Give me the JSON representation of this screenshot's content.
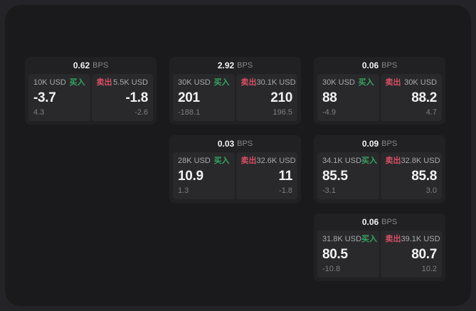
{
  "labels": {
    "bps_unit": "BPS",
    "buy": "买入",
    "sell": "卖出"
  },
  "colors": {
    "buy_green": "#36a45f",
    "sell_red": "#d65063",
    "window_bg": "#1a1a1c",
    "card_bg": "#212124",
    "panel_bg": "#29292c"
  },
  "cards": [
    {
      "grid": {
        "row": 0,
        "col": 0
      },
      "bps": "0.62",
      "buy": {
        "size": "10K USD",
        "price": "-3.7",
        "change": "4.3"
      },
      "sell": {
        "size": "5.5K USD",
        "price": "-1.8",
        "change": "-2.6"
      }
    },
    {
      "grid": {
        "row": 0,
        "col": 1
      },
      "bps": "2.92",
      "buy": {
        "size": "30K USD",
        "price": "201",
        "change": "-188.1"
      },
      "sell": {
        "size": "30.1K USD",
        "price": "210",
        "change": "196.5"
      }
    },
    {
      "grid": {
        "row": 0,
        "col": 2
      },
      "bps": "0.06",
      "buy": {
        "size": "30K USD",
        "price": "88",
        "change": "-4.9"
      },
      "sell": {
        "size": "30K USD",
        "price": "88.2",
        "change": "4.7"
      }
    },
    {
      "grid": {
        "row": 1,
        "col": 1
      },
      "bps": "0.03",
      "buy": {
        "size": "28K USD",
        "price": "10.9",
        "change": "1.3"
      },
      "sell": {
        "size": "32.6K USD",
        "price": "11",
        "change": "-1.8"
      }
    },
    {
      "grid": {
        "row": 1,
        "col": 2
      },
      "bps": "0.09",
      "buy": {
        "size": "34.1K USD",
        "price": "85.5",
        "change": "-3.1"
      },
      "sell": {
        "size": "32.8K USD",
        "price": "85.8",
        "change": "3.0"
      }
    },
    {
      "grid": {
        "row": 2,
        "col": 2
      },
      "bps": "0.06",
      "buy": {
        "size": "31.8K USD",
        "price": "80.5",
        "change": "-10.8"
      },
      "sell": {
        "size": "39.1K USD",
        "price": "80.7",
        "change": "10.2"
      }
    }
  ]
}
